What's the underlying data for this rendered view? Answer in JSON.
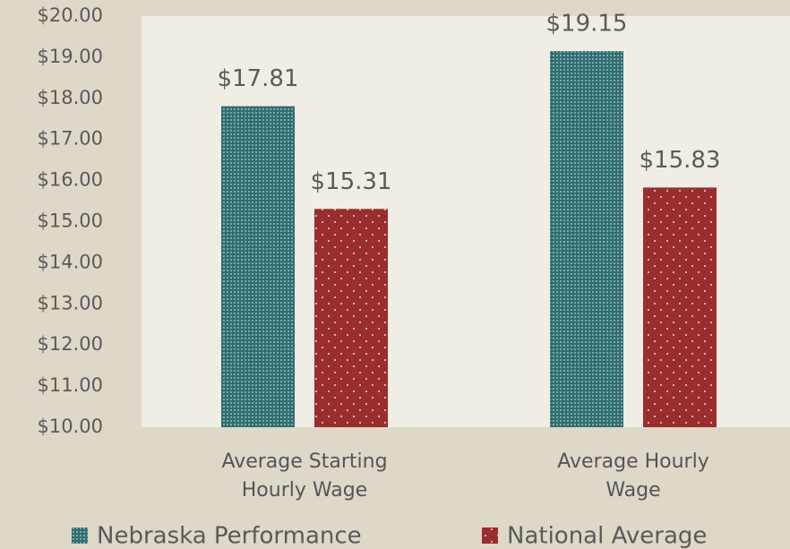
{
  "chart_data": {
    "type": "bar",
    "categories": [
      "Average Starting Hourly Wage",
      "Average Hourly Wage"
    ],
    "series": [
      {
        "name": "Nebraska Performance",
        "color": "#2f6e72",
        "values": [
          17.81,
          19.15
        ],
        "value_labels": [
          "$17.81",
          "$19.15"
        ]
      },
      {
        "name": "National Average",
        "color": "#9a2d2e",
        "values": [
          15.31,
          15.83
        ],
        "value_labels": [
          "$15.31",
          "$15.83"
        ]
      }
    ],
    "ylim": [
      10,
      20
    ],
    "yticks": [
      {
        "value": 10,
        "label": "$10.00"
      },
      {
        "value": 11,
        "label": "$11.00"
      },
      {
        "value": 12,
        "label": "$12.00"
      },
      {
        "value": 13,
        "label": "$13.00"
      },
      {
        "value": 14,
        "label": "$14.00"
      },
      {
        "value": 15,
        "label": "$15.00"
      },
      {
        "value": 16,
        "label": "$16.00"
      },
      {
        "value": 17,
        "label": "$17.00"
      },
      {
        "value": 18,
        "label": "$18.00"
      },
      {
        "value": 19,
        "label": "$19.00"
      },
      {
        "value": 20,
        "label": "$20.00"
      }
    ],
    "legend": "bottom"
  }
}
